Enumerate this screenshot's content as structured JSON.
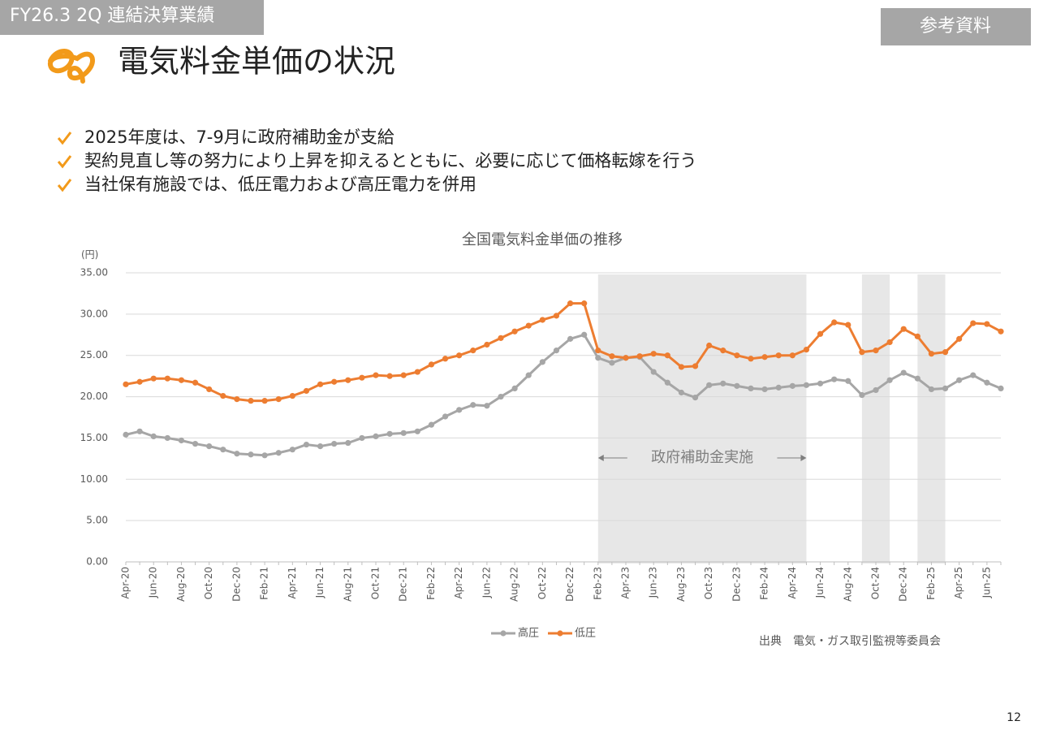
{
  "header": {
    "section": "FY26.3 2Q 連結決算業績",
    "tag": "参考資料",
    "title": "電気料金単価の状況"
  },
  "bullets": [
    "2025年度は、7-9月に政府補助金が支給",
    "契約見直し等の努力により上昇を抑えるとともに、必要に応じて価格転嫁を行う",
    "当社保有施設では、低圧電力および高圧電力を併用"
  ],
  "chart_data": {
    "type": "line",
    "title": "全国電気料金単価の推移",
    "y_label": "(円)",
    "categories": [
      "Apr-20",
      null,
      "Jun-20",
      null,
      "Aug-20",
      null,
      "Oct-20",
      null,
      "Dec-20",
      null,
      "Feb-21",
      null,
      "Apr-21",
      null,
      "Jun-21",
      null,
      "Aug-21",
      null,
      "Oct-21",
      null,
      "Dec-21",
      null,
      "Feb-22",
      null,
      "Apr-22",
      null,
      "Jun-22",
      null,
      "Aug-22",
      null,
      "Oct-22",
      null,
      "Dec-22",
      null,
      "Feb-23",
      null,
      "Apr-23",
      null,
      "Jun-23",
      null,
      "Aug-23",
      null,
      "Oct-23",
      null,
      "Dec-23",
      null,
      "Feb-24",
      null,
      "Apr-24",
      null,
      "Jun-24",
      null,
      "Aug-24",
      null,
      "Oct-24",
      null,
      "Dec-24",
      null,
      "Feb-25",
      null,
      "Apr-25",
      null,
      "Jun-25",
      null
    ],
    "series": [
      {
        "name": "高圧",
        "color": "#a6a6a6",
        "values": [
          15.4,
          15.8,
          15.2,
          15.0,
          14.7,
          14.3,
          14.0,
          13.6,
          13.1,
          13.0,
          12.9,
          13.2,
          13.6,
          14.2,
          14.0,
          14.3,
          14.4,
          15.0,
          15.2,
          15.5,
          15.6,
          15.8,
          16.6,
          17.6,
          18.4,
          19.0,
          18.9,
          20.0,
          21.0,
          22.6,
          24.2,
          25.6,
          27.0,
          27.5,
          24.7,
          24.1,
          24.7,
          24.8,
          23.0,
          21.7,
          20.5,
          19.9,
          21.4,
          21.6,
          21.3,
          21.0,
          20.9,
          21.1,
          21.3,
          21.4,
          21.6,
          22.1,
          21.9,
          20.2,
          20.8,
          22.0,
          22.9,
          22.2,
          20.9,
          21.0,
          22.0,
          22.6,
          21.7,
          21.0
        ]
      },
      {
        "name": "低圧",
        "color": "#ed7d31",
        "values": [
          21.5,
          21.8,
          22.2,
          22.2,
          22.0,
          21.7,
          20.9,
          20.1,
          19.7,
          19.5,
          19.5,
          19.7,
          20.1,
          20.7,
          21.5,
          21.8,
          22.0,
          22.3,
          22.6,
          22.5,
          22.6,
          23.0,
          23.9,
          24.6,
          25.0,
          25.6,
          26.3,
          27.1,
          27.9,
          28.6,
          29.3,
          29.8,
          31.3,
          31.3,
          25.6,
          24.9,
          24.7,
          24.9,
          25.2,
          25.0,
          23.6,
          23.7,
          26.2,
          25.6,
          25.0,
          24.6,
          24.8,
          25.0,
          25.0,
          25.7,
          27.6,
          29.0,
          28.7,
          25.4,
          25.6,
          26.6,
          28.2,
          27.3,
          25.2,
          25.4,
          27.0,
          28.9,
          28.8,
          27.9
        ]
      }
    ],
    "shaded_spans": [
      [
        34,
        49
      ],
      [
        53,
        55
      ],
      [
        57,
        59
      ]
    ],
    "annotation": "政府補助金実施",
    "ylim": [
      0,
      35
    ],
    "yticks": [
      {
        "value": 0,
        "label": "0.00"
      },
      {
        "value": 5,
        "label": "5.00"
      },
      {
        "value": 10,
        "label": "10.00"
      },
      {
        "value": 15,
        "label": "15.00"
      },
      {
        "value": 20,
        "label": "20.00"
      },
      {
        "value": 25,
        "label": "25.00"
      },
      {
        "value": 30,
        "label": "30.00"
      },
      {
        "value": 35,
        "label": "35.00"
      }
    ],
    "grid": true,
    "legend": "bottom",
    "source": "出典　電気・ガス取引監視等委員会"
  },
  "page_number": "12"
}
